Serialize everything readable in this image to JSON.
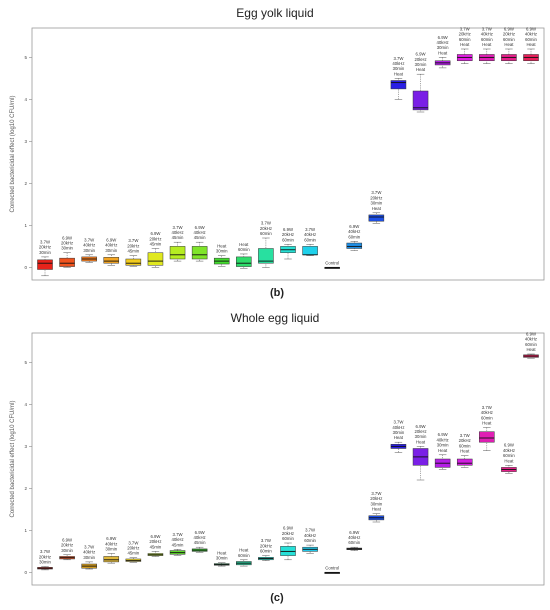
{
  "chart_data": [
    {
      "type": "box",
      "title": "Egg yolk liquid",
      "panel_label": "(b)",
      "ylabel": "Corrected bactericidal effect (log10 CFU/ml)",
      "ylim": [
        -0.3,
        5.7
      ],
      "yticks": [
        "0",
        "1",
        "2",
        "3",
        "4",
        "5"
      ],
      "grid": false,
      "boxes": [
        {
          "label": [
            "3.7W",
            "20kHz",
            "30min"
          ],
          "color": "#e8231b",
          "whisker_low": -0.2,
          "q1": -0.05,
          "median": 0.1,
          "q3": 0.18,
          "whisker_high": 0.25
        },
        {
          "label": [
            "6.9W",
            "20kHz",
            "30min"
          ],
          "color": "#f0531e",
          "whisker_low": 0.0,
          "q1": 0.02,
          "median": 0.1,
          "q3": 0.22,
          "whisker_high": 0.35
        },
        {
          "label": [
            "3.7W",
            "40kHz",
            "30min"
          ],
          "color": "#f57d1f",
          "whisker_low": 0.12,
          "q1": 0.15,
          "median": 0.2,
          "q3": 0.25,
          "whisker_high": 0.3
        },
        {
          "label": [
            "6.9W",
            "40kHz",
            "30min"
          ],
          "color": "#f5a623",
          "whisker_low": 0.05,
          "q1": 0.1,
          "median": 0.15,
          "q3": 0.24,
          "whisker_high": 0.3
        },
        {
          "label": [
            "3.7W",
            "20kHz",
            "45min"
          ],
          "color": "#f2cc1e",
          "whisker_low": 0.02,
          "q1": 0.05,
          "median": 0.1,
          "q3": 0.2,
          "whisker_high": 0.28
        },
        {
          "label": [
            "6.9W",
            "20kHz",
            "45min"
          ],
          "color": "#e0e820",
          "whisker_low": 0.0,
          "q1": 0.05,
          "median": 0.15,
          "q3": 0.35,
          "whisker_high": 0.45
        },
        {
          "label": [
            "3.7W",
            "40kHz",
            "45min"
          ],
          "color": "#b5ec22",
          "whisker_low": 0.15,
          "q1": 0.2,
          "median": 0.3,
          "q3": 0.5,
          "whisker_high": 0.6
        },
        {
          "label": [
            "6.9W",
            "40kHz",
            "45min"
          ],
          "color": "#7fe52a",
          "whisker_low": 0.15,
          "q1": 0.2,
          "median": 0.3,
          "q3": 0.5,
          "whisker_high": 0.6
        },
        {
          "label": [
            "Heat",
            "30min"
          ],
          "color": "#43dc2e",
          "whisker_low": 0.02,
          "q1": 0.08,
          "median": 0.15,
          "q3": 0.22,
          "whisker_high": 0.28
        },
        {
          "label": [
            "Heat",
            "60min"
          ],
          "color": "#2ddc6a",
          "whisker_low": -0.02,
          "q1": 0.02,
          "median": 0.1,
          "q3": 0.25,
          "whisker_high": 0.32
        },
        {
          "label": [
            "3.7W",
            "20kHz",
            "60min"
          ],
          "color": "#28e0a0",
          "whisker_low": 0.0,
          "q1": 0.1,
          "median": 0.15,
          "q3": 0.45,
          "whisker_high": 0.7
        },
        {
          "label": [
            "6.9W",
            "20kHz",
            "60min"
          ],
          "color": "#26e0d4",
          "whisker_low": 0.2,
          "q1": 0.35,
          "median": 0.42,
          "q3": 0.5,
          "whisker_high": 0.55
        },
        {
          "label": [
            "3.7W",
            "40kHz",
            "60min"
          ],
          "color": "#1fd0ea",
          "whisker_low": 0.28,
          "q1": 0.3,
          "median": 0.3,
          "q3": 0.5,
          "whisker_high": 0.55
        },
        {
          "label": [
            "Control"
          ],
          "color": "#1a1a1a",
          "whisker_low": 0.0,
          "q1": 0.0,
          "median": 0.0,
          "q3": 0.0,
          "whisker_high": 0.0
        },
        {
          "label": [
            "6.9W",
            "40kHz",
            "60min"
          ],
          "color": "#1f8fe6",
          "whisker_low": 0.4,
          "q1": 0.45,
          "median": 0.5,
          "q3": 0.58,
          "whisker_high": 0.62
        },
        {
          "label": [
            "3.7W",
            "20kHz",
            "30min",
            "Heat"
          ],
          "color": "#1c4fe8",
          "whisker_low": 1.05,
          "q1": 1.1,
          "median": 1.2,
          "q3": 1.25,
          "whisker_high": 1.3
        },
        {
          "label": [
            "3.7W",
            "40kHz",
            "30min",
            "Heat"
          ],
          "color": "#2a1fe6",
          "whisker_low": 4.0,
          "q1": 4.25,
          "median": 4.4,
          "q3": 4.45,
          "whisker_high": 4.5
        },
        {
          "label": [
            "6.9W",
            "20kHz",
            "30min",
            "Heat"
          ],
          "color": "#7a1fe6",
          "whisker_low": 3.7,
          "q1": 3.75,
          "median": 3.8,
          "q3": 4.2,
          "whisker_high": 4.6
        },
        {
          "label": [
            "6.9W",
            "40kHz",
            "30min",
            "Heat"
          ],
          "color": "#b41fe6",
          "whisker_low": 4.75,
          "q1": 4.82,
          "median": 4.87,
          "q3": 4.92,
          "whisker_high": 5.0
        },
        {
          "label": [
            "3.7W",
            "20kHz",
            "60min",
            "Heat"
          ],
          "color": "#e01fe0",
          "whisker_low": 4.85,
          "q1": 4.92,
          "median": 5.0,
          "q3": 5.07,
          "whisker_high": 5.2
        },
        {
          "label": [
            "3.7W",
            "40kHz",
            "60min",
            "Heat"
          ],
          "color": "#e01fb4",
          "whisker_low": 4.85,
          "q1": 4.92,
          "median": 5.0,
          "q3": 5.07,
          "whisker_high": 5.2
        },
        {
          "label": [
            "6.9W",
            "20kHz",
            "60min",
            "Heat"
          ],
          "color": "#e61f8a",
          "whisker_low": 4.85,
          "q1": 4.92,
          "median": 5.0,
          "q3": 5.07,
          "whisker_high": 5.2
        },
        {
          "label": [
            "6.9W",
            "40kHz",
            "60min",
            "Heat"
          ],
          "color": "#e81f5a",
          "whisker_low": 4.85,
          "q1": 4.92,
          "median": 5.0,
          "q3": 5.07,
          "whisker_high": 5.2
        }
      ]
    },
    {
      "type": "box",
      "title": "Whole egg liquid",
      "panel_label": "(c)",
      "ylabel": "Corrected bactericidal effect (log10 CFU/ml)",
      "ylim": [
        -0.3,
        5.7
      ],
      "yticks": [
        "0",
        "1",
        "2",
        "3",
        "4",
        "5"
      ],
      "grid": false,
      "boxes": [
        {
          "label": [
            "3.7W",
            "20kHz",
            "30min"
          ],
          "color": "#e8231b",
          "whisker_low": 0.06,
          "q1": 0.08,
          "median": 0.1,
          "q3": 0.12,
          "whisker_high": 0.14
        },
        {
          "label": [
            "6.9W",
            "20kHz",
            "30min"
          ],
          "color": "#f0531e",
          "whisker_low": 0.3,
          "q1": 0.32,
          "median": 0.35,
          "q3": 0.38,
          "whisker_high": 0.42
        },
        {
          "label": [
            "3.7W",
            "40kHz",
            "30min"
          ],
          "color": "#d9a020",
          "whisker_low": 0.08,
          "q1": 0.1,
          "median": 0.15,
          "q3": 0.2,
          "whisker_high": 0.25
        },
        {
          "label": [
            "6.9W",
            "40kHz",
            "30min"
          ],
          "color": "#e0b83a",
          "whisker_low": 0.22,
          "q1": 0.25,
          "median": 0.3,
          "q3": 0.38,
          "whisker_high": 0.45
        },
        {
          "label": [
            "3.7W",
            "20kHz",
            "45min"
          ],
          "color": "#e8d024",
          "whisker_low": 0.24,
          "q1": 0.26,
          "median": 0.28,
          "q3": 0.32,
          "whisker_high": 0.35
        },
        {
          "label": [
            "6.9W",
            "20kHz",
            "45min"
          ],
          "color": "#b8e028",
          "whisker_low": 0.38,
          "q1": 0.4,
          "median": 0.42,
          "q3": 0.45,
          "whisker_high": 0.5
        },
        {
          "label": [
            "3.7W",
            "40kHz",
            "45min"
          ],
          "color": "#5ed82a",
          "whisker_low": 0.4,
          "q1": 0.43,
          "median": 0.47,
          "q3": 0.52,
          "whisker_high": 0.55
        },
        {
          "label": [
            "6.9W",
            "40kHz",
            "45min"
          ],
          "color": "#36c82e",
          "whisker_low": 0.48,
          "q1": 0.5,
          "median": 0.53,
          "q3": 0.56,
          "whisker_high": 0.6
        },
        {
          "label": [
            "Heat",
            "30min"
          ],
          "color": "#2ab86a",
          "whisker_low": 0.15,
          "q1": 0.17,
          "median": 0.19,
          "q3": 0.21,
          "whisker_high": 0.23
        },
        {
          "label": [
            "Heat",
            "60min"
          ],
          "color": "#28c89a",
          "whisker_low": 0.15,
          "q1": 0.18,
          "median": 0.22,
          "q3": 0.26,
          "whisker_high": 0.3
        },
        {
          "label": [
            "3.7W",
            "20kHz",
            "60min"
          ],
          "color": "#26d8c8",
          "whisker_low": 0.28,
          "q1": 0.3,
          "median": 0.33,
          "q3": 0.36,
          "whisker_high": 0.4
        },
        {
          "label": [
            "6.9W",
            "20kHz",
            "60min"
          ],
          "color": "#26e0d8",
          "whisker_low": 0.3,
          "q1": 0.4,
          "median": 0.5,
          "q3": 0.62,
          "whisker_high": 0.7
        },
        {
          "label": [
            "3.7W",
            "40kHz",
            "60min"
          ],
          "color": "#20c8ea",
          "whisker_low": 0.45,
          "q1": 0.5,
          "median": 0.55,
          "q3": 0.6,
          "whisker_high": 0.65
        },
        {
          "label": [
            "Control"
          ],
          "color": "#1a1a1a",
          "whisker_low": 0.0,
          "q1": 0.0,
          "median": 0.0,
          "q3": 0.0,
          "whisker_high": 0.0
        },
        {
          "label": [
            "6.9W",
            "40kHz",
            "60min"
          ],
          "color": "#444444",
          "whisker_low": 0.52,
          "q1": 0.54,
          "median": 0.56,
          "q3": 0.58,
          "whisker_high": 0.6
        },
        {
          "label": [
            "3.7W",
            "20kHz",
            "30min",
            "Heat"
          ],
          "color": "#1c4fe8",
          "whisker_low": 1.2,
          "q1": 1.25,
          "median": 1.3,
          "q3": 1.35,
          "whisker_high": 1.4
        },
        {
          "label": [
            "3.7W",
            "40kHz",
            "30min",
            "Heat"
          ],
          "color": "#2a1fe6",
          "whisker_low": 2.85,
          "q1": 2.95,
          "median": 3.0,
          "q3": 3.05,
          "whisker_high": 3.1
        },
        {
          "label": [
            "6.9W",
            "20kHz",
            "30min",
            "Heat"
          ],
          "color": "#7a1fe6",
          "whisker_low": 2.2,
          "q1": 2.55,
          "median": 2.75,
          "q3": 2.95,
          "whisker_high": 3.0
        },
        {
          "label": [
            "6.9W",
            "40kHz",
            "30min",
            "Heat"
          ],
          "color": "#b41fe6",
          "whisker_low": 2.45,
          "q1": 2.5,
          "median": 2.6,
          "q3": 2.7,
          "whisker_high": 2.8
        },
        {
          "label": [
            "3.7W",
            "20kHz",
            "60min",
            "Heat"
          ],
          "color": "#d21fe0",
          "whisker_low": 2.5,
          "q1": 2.55,
          "median": 2.6,
          "q3": 2.7,
          "whisker_high": 2.78
        },
        {
          "label": [
            "3.7W",
            "40kHz",
            "60min",
            "Heat"
          ],
          "color": "#e01fb4",
          "whisker_low": 2.9,
          "q1": 3.1,
          "median": 3.2,
          "q3": 3.35,
          "whisker_high": 3.45
        },
        {
          "label": [
            "6.9W",
            "40kHz",
            "60min",
            "Heat"
          ],
          "color": "#e61f8a",
          "whisker_low": 2.35,
          "q1": 2.4,
          "median": 2.45,
          "q3": 2.5,
          "whisker_high": 2.55
        },
        {
          "label": [
            "6.9W",
            "40kHz",
            "60min",
            "Heat"
          ],
          "color": "#e81f5a",
          "whisker_low": 5.1,
          "q1": 5.12,
          "median": 5.15,
          "q3": 5.18,
          "whisker_high": 5.2
        }
      ]
    }
  ]
}
